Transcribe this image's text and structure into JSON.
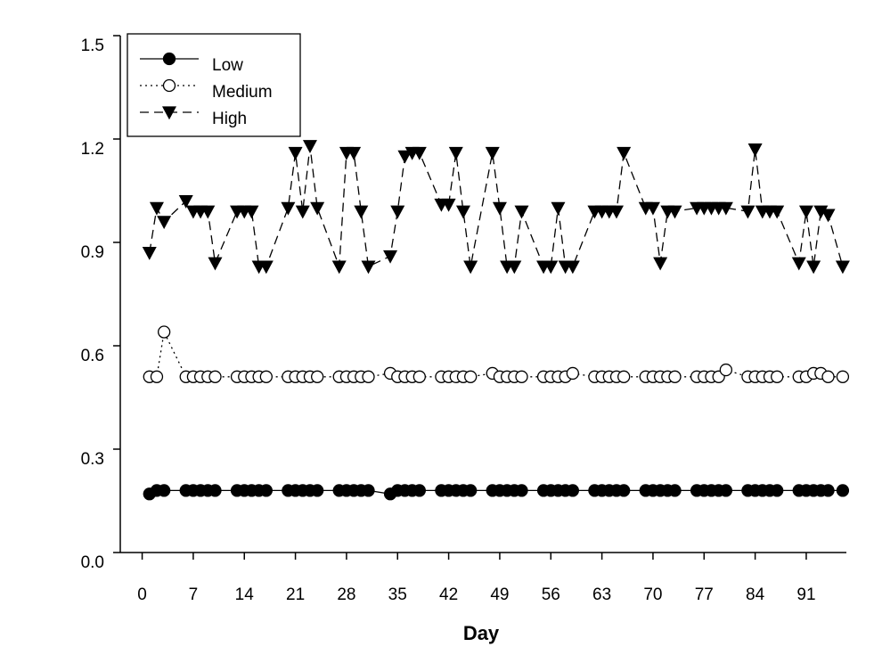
{
  "chart_data": {
    "type": "line",
    "x_label": "Day",
    "x": [
      1,
      2,
      3,
      6,
      7,
      8,
      9,
      10,
      13,
      14,
      15,
      16,
      17,
      20,
      21,
      22,
      23,
      24,
      27,
      28,
      29,
      30,
      31,
      34,
      35,
      36,
      37,
      38,
      41,
      42,
      43,
      44,
      45,
      48,
      49,
      50,
      51,
      52,
      55,
      56,
      57,
      58,
      59,
      62,
      63,
      64,
      65,
      66,
      69,
      70,
      71,
      72,
      73,
      76,
      77,
      78,
      79,
      80,
      83,
      84,
      85,
      86,
      87,
      90,
      91,
      92,
      93,
      94,
      96
    ],
    "xlim": [
      -3,
      96.5
    ],
    "xticks": [
      0,
      7,
      14,
      21,
      28,
      35,
      42,
      49,
      56,
      63,
      70,
      77,
      84,
      91
    ],
    "ylim": [
      0,
      1.5
    ],
    "yticks": [
      {
        "value": 0,
        "label": "0.0"
      },
      0.3,
      0.6,
      0.9,
      1.2,
      {
        "value": 1.5,
        "label": "1.5"
      }
    ],
    "legend": "upper left",
    "series": [
      {
        "name": "Low",
        "color": "#000000",
        "marker": "circle",
        "fill": "filled",
        "line_style": "solid",
        "values": [
          0.17,
          0.18,
          0.18,
          0.18,
          0.18,
          0.18,
          0.18,
          0.18,
          0.18,
          0.18,
          0.18,
          0.18,
          0.18,
          0.18,
          0.18,
          0.18,
          0.18,
          0.18,
          0.18,
          0.18,
          0.18,
          0.18,
          0.18,
          0.17,
          0.18,
          0.18,
          0.18,
          0.18,
          0.18,
          0.18,
          0.18,
          0.18,
          0.18,
          0.18,
          0.18,
          0.18,
          0.18,
          0.18,
          0.18,
          0.18,
          0.18,
          0.18,
          0.18,
          0.18,
          0.18,
          0.18,
          0.18,
          0.18,
          0.18,
          0.18,
          0.18,
          0.18,
          0.18,
          0.18,
          0.18,
          0.18,
          0.18,
          0.18,
          0.18,
          0.18,
          0.18,
          0.18,
          0.18,
          0.18,
          0.18,
          0.18,
          0.18,
          0.18,
          0.18
        ]
      },
      {
        "name": "Medium",
        "color": "#000000",
        "marker": "circle",
        "fill": "open",
        "line_style": "dotted",
        "values": [
          0.51,
          0.51,
          0.64,
          0.51,
          0.51,
          0.51,
          0.51,
          0.51,
          0.51,
          0.51,
          0.51,
          0.51,
          0.51,
          0.51,
          0.51,
          0.51,
          0.51,
          0.51,
          0.51,
          0.51,
          0.51,
          0.51,
          0.51,
          0.52,
          0.51,
          0.51,
          0.51,
          0.51,
          0.51,
          0.51,
          0.51,
          0.51,
          0.51,
          0.52,
          0.51,
          0.51,
          0.51,
          0.51,
          0.51,
          0.51,
          0.51,
          0.51,
          0.52,
          0.51,
          0.51,
          0.51,
          0.51,
          0.51,
          0.51,
          0.51,
          0.51,
          0.51,
          0.51,
          0.51,
          0.51,
          0.51,
          0.51,
          0.53,
          0.51,
          0.51,
          0.51,
          0.51,
          0.51,
          0.51,
          0.51,
          0.52,
          0.52,
          0.51,
          0.51
        ]
      },
      {
        "name": "High",
        "color": "#000000",
        "marker": "triangle-down",
        "fill": "filled",
        "line_style": "dashed",
        "values": [
          0.87,
          1.0,
          0.96,
          1.02,
          0.99,
          0.99,
          0.99,
          0.84,
          0.99,
          0.99,
          0.99,
          0.83,
          0.83,
          1.0,
          1.16,
          0.99,
          1.18,
          1.0,
          0.83,
          1.16,
          1.16,
          0.99,
          0.83,
          0.86,
          0.99,
          1.15,
          1.16,
          1.16,
          1.01,
          1.01,
          1.16,
          0.99,
          0.83,
          1.16,
          1.0,
          0.83,
          0.83,
          0.99,
          0.83,
          0.83,
          1.0,
          0.83,
          0.83,
          0.99,
          0.99,
          0.99,
          0.99,
          1.16,
          1.0,
          1.0,
          0.84,
          0.99,
          0.99,
          1.0,
          1.0,
          1.0,
          1.0,
          1.0,
          0.99,
          1.17,
          0.99,
          0.99,
          0.99,
          0.84,
          0.99,
          0.83,
          0.99,
          0.98,
          0.83
        ]
      }
    ]
  }
}
